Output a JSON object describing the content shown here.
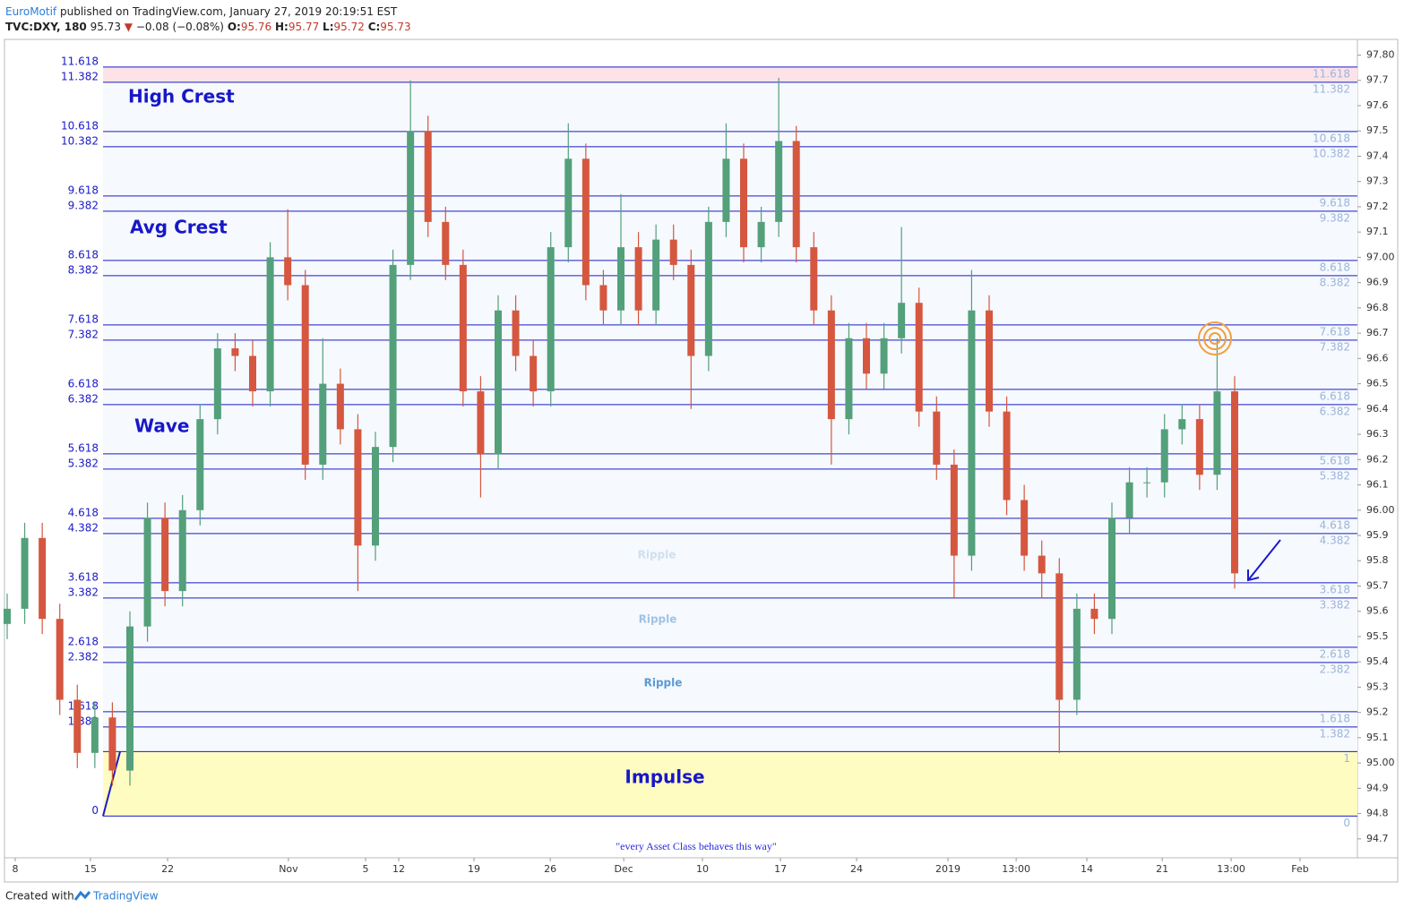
{
  "header": {
    "author": "EuroMotif",
    "published": "published on TradingView.com, January 27, 2019 20:19:51 EST",
    "symbol": "TVC:DXY, 180",
    "last": "95.73",
    "direction": "▼",
    "change": "−0.08 (−0.08%)",
    "o_label": "O:",
    "o": "95.76",
    "h_label": "H:",
    "h": "95.77",
    "l_label": "L:",
    "l": "95.72",
    "c_label": "C:",
    "c": "95.73"
  },
  "footer": {
    "created": "Created with",
    "brand": "TradingView"
  },
  "chart_data": {
    "type": "candlestick",
    "up_color": "#53a07a",
    "down_color": "#d5573f",
    "xlim": [
      0,
      77
    ],
    "xticks": [
      {
        "value": 0.46,
        "label": "8"
      },
      {
        "value": 4.75,
        "label": "15"
      },
      {
        "value": 9.15,
        "label": "22"
      },
      {
        "value": 16.04,
        "label": "Nov"
      },
      {
        "value": 20.44,
        "label": "5"
      },
      {
        "value": 22.33,
        "label": "12"
      },
      {
        "value": 26.62,
        "label": "19"
      },
      {
        "value": 30.97,
        "label": "26"
      },
      {
        "value": 35.16,
        "label": "Dec"
      },
      {
        "value": 39.65,
        "label": "10"
      },
      {
        "value": 44.1,
        "label": "17"
      },
      {
        "value": 48.44,
        "label": "24"
      },
      {
        "value": 53.65,
        "label": "2019"
      },
      {
        "value": 57.54,
        "label": "13:00"
      },
      {
        "value": 61.57,
        "label": "14"
      },
      {
        "value": 65.87,
        "label": "21"
      },
      {
        "value": 69.8,
        "label": "13:00"
      },
      {
        "value": 73.73,
        "label": "Feb"
      }
    ],
    "ylim": [
      94.625,
      97.862
    ],
    "yticks": [
      {
        "value": 97.8,
        "label": "97.80"
      },
      97.7,
      97.6,
      97.5,
      97.4,
      97.3,
      97.2,
      97.1,
      {
        "value": 97.0,
        "label": "97.00"
      },
      96.9,
      96.8,
      96.7,
      96.6,
      96.5,
      96.4,
      96.3,
      96.2,
      96.1,
      {
        "value": 96.0,
        "label": "96.00"
      },
      95.9,
      95.8,
      95.7,
      95.6,
      95.5,
      95.4,
      95.3,
      95.2,
      95.1,
      {
        "value": 95.0,
        "label": "95.00"
      },
      94.9,
      94.8,
      94.7
    ],
    "open": [
      95.55,
      95.61,
      95.89,
      95.57,
      95.25,
      95.04,
      95.18,
      94.97,
      95.54,
      95.97,
      95.68,
      96.0,
      96.36,
      96.64,
      96.61,
      96.47,
      97.0,
      96.89,
      96.18,
      96.5,
      96.32,
      95.86,
      96.25,
      96.97,
      97.5,
      97.14,
      96.97,
      96.47,
      96.22,
      96.79,
      96.61,
      96.47,
      97.04,
      97.39,
      96.89,
      96.79,
      97.04,
      96.79,
      97.07,
      96.97,
      96.61,
      97.14,
      97.39,
      97.04,
      97.14,
      97.46,
      97.04,
      96.79,
      96.36,
      96.68,
      96.54,
      96.68,
      96.82,
      96.39,
      96.18,
      95.82,
      96.79,
      96.39,
      96.04,
      95.82,
      95.75,
      95.25,
      95.61,
      95.57,
      95.97,
      96.11,
      96.11,
      96.32,
      96.36,
      96.14,
      96.47
    ],
    "high": [
      95.67,
      95.95,
      95.95,
      95.63,
      95.31,
      95.24,
      95.24,
      95.6,
      96.03,
      96.03,
      96.06,
      96.42,
      96.7,
      96.7,
      96.67,
      97.06,
      97.19,
      96.95,
      96.68,
      96.56,
      96.38,
      96.31,
      97.03,
      97.7,
      97.56,
      97.2,
      97.03,
      96.53,
      96.85,
      96.85,
      96.67,
      97.1,
      97.53,
      97.45,
      96.95,
      97.25,
      97.1,
      97.13,
      97.13,
      97.03,
      97.2,
      97.53,
      97.45,
      97.2,
      97.71,
      97.52,
      97.1,
      96.85,
      96.74,
      96.74,
      96.74,
      97.12,
      96.88,
      96.45,
      96.24,
      96.95,
      96.85,
      96.45,
      96.1,
      95.88,
      95.81,
      95.67,
      95.67,
      96.03,
      96.17,
      96.17,
      96.38,
      96.42,
      96.42,
      96.68,
      96.53
    ],
    "low": [
      95.49,
      95.55,
      95.51,
      95.19,
      94.98,
      94.98,
      94.91,
      94.91,
      95.48,
      95.62,
      95.62,
      95.94,
      96.3,
      96.55,
      96.41,
      96.41,
      96.83,
      96.12,
      96.12,
      96.26,
      95.68,
      95.8,
      96.19,
      96.91,
      97.08,
      96.91,
      96.41,
      96.05,
      96.16,
      96.55,
      96.41,
      96.41,
      96.98,
      96.83,
      96.73,
      96.73,
      96.73,
      96.73,
      96.91,
      96.4,
      96.55,
      97.08,
      96.98,
      96.98,
      97.08,
      96.98,
      96.73,
      96.18,
      96.3,
      96.48,
      96.48,
      96.62,
      96.33,
      96.12,
      95.65,
      95.76,
      96.33,
      95.98,
      95.76,
      95.65,
      95.04,
      95.19,
      95.51,
      95.51,
      95.91,
      96.05,
      96.05,
      96.26,
      96.08,
      96.08,
      95.69
    ],
    "close": [
      95.61,
      95.89,
      95.57,
      95.25,
      95.04,
      95.18,
      94.97,
      95.54,
      95.97,
      95.68,
      96.0,
      96.36,
      96.64,
      96.61,
      96.47,
      97.0,
      96.89,
      96.18,
      96.5,
      96.32,
      95.86,
      96.25,
      96.97,
      97.5,
      97.14,
      96.97,
      96.47,
      96.22,
      96.79,
      96.61,
      96.47,
      97.04,
      97.39,
      96.89,
      96.79,
      97.04,
      96.79,
      97.07,
      96.97,
      96.61,
      97.14,
      97.39,
      97.04,
      97.14,
      97.46,
      97.04,
      96.79,
      96.36,
      96.68,
      96.54,
      96.68,
      96.82,
      96.39,
      96.18,
      95.82,
      96.79,
      96.39,
      96.04,
      95.82,
      95.75,
      95.25,
      95.61,
      95.57,
      95.97,
      96.11,
      96.11,
      96.32,
      96.36,
      96.14,
      96.47,
      95.75
    ],
    "fib": {
      "anchor_prices": [
        94.79,
        95.045
      ],
      "line_color": "#1b1bc7",
      "right_label_color": "#9bb4dc",
      "top_band_color": "#fde3e8",
      "bottom_band_color": "#fffcc2",
      "band_color": "#f6f9fd",
      "levels": [
        0,
        1,
        1.382,
        1.618,
        2.382,
        2.618,
        3.382,
        3.618,
        4.382,
        4.618,
        5.382,
        5.618,
        6.382,
        6.618,
        7.382,
        7.618,
        8.382,
        8.618,
        9.382,
        9.618,
        10.382,
        10.618,
        11.382,
        11.618
      ]
    },
    "annotations": {
      "high_crest": "High Crest",
      "avg_crest": "Avg Crest",
      "wave": "Wave",
      "ripple_1": "Ripple",
      "ripple_2": "Ripple",
      "ripple_3": "Ripple",
      "impulse": "Impulse",
      "quote": "\"every Asset Class behaves this way\""
    }
  }
}
